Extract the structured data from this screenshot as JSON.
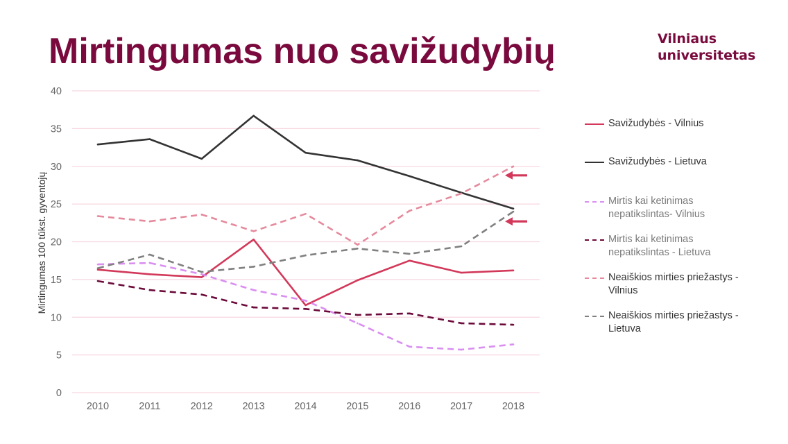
{
  "title": "Mirtingumas nuo savižudybių",
  "logo": {
    "line1": "Vilniaus",
    "line2": "universitetas"
  },
  "colors": {
    "title": "#7a0a3d",
    "grid": "#f7d6e0",
    "arrow": "#d2385a"
  },
  "chart_data": {
    "type": "line",
    "ylabel": "Mirtingumas 100 tūkst. gyventojų",
    "xlabel": "",
    "ylim": [
      0,
      40
    ],
    "yticks": [
      0,
      5,
      10,
      15,
      20,
      25,
      30,
      35,
      40
    ],
    "grid": true,
    "legend_position": "right",
    "categories": [
      "2010",
      "2011",
      "2012",
      "2013",
      "2014",
      "2015",
      "2016",
      "2017",
      "2018"
    ],
    "series": [
      {
        "name": "Savižudybės - Vilnius",
        "color": "#d2385a",
        "dash": "solid",
        "values": [
          16.3,
          15.7,
          15.3,
          20.3,
          11.6,
          14.9,
          17.5,
          15.9,
          16.2
        ]
      },
      {
        "name": "Savižudybės - Lietuva",
        "color": "#333333",
        "dash": "solid",
        "values": [
          32.9,
          33.6,
          31.0,
          36.7,
          31.8,
          30.8,
          28.7,
          26.5,
          24.4
        ]
      },
      {
        "name": "Mirtis kai ketinimas nepatikslintas- Vilnius",
        "color": "#d98ef0",
        "dash": "dashed",
        "values": [
          17.0,
          17.2,
          15.7,
          13.6,
          12.2,
          9.2,
          6.1,
          5.7,
          6.4
        ]
      },
      {
        "name": "Mirtis kai ketinimas nepatikslintas - Lietuva",
        "color": "#6b0a3a",
        "dash": "dashed",
        "values": [
          14.8,
          13.6,
          13.0,
          11.3,
          11.1,
          10.3,
          10.5,
          9.2,
          9.0
        ]
      },
      {
        "name": "Neaiškios mirties priežastys - Vilnius",
        "color": "#e58a9d",
        "dash": "dashed",
        "values": [
          23.4,
          22.7,
          23.6,
          21.4,
          23.7,
          19.6,
          24.1,
          26.4,
          30.0
        ]
      },
      {
        "name": "Neaiškios mirties priežastys - Lietuva",
        "color": "#808080",
        "dash": "dashed",
        "values": [
          16.5,
          18.3,
          16.0,
          16.7,
          18.2,
          19.1,
          18.4,
          19.4,
          24.0
        ]
      }
    ],
    "annotations": [
      {
        "type": "arrow",
        "series": "Neaiškios mirties priežastys - Vilnius",
        "category": "2018",
        "value": 28.8
      },
      {
        "type": "arrow",
        "series": "Neaiškios mirties priežastys - Lietuva",
        "category": "2018",
        "value": 22.7
      }
    ]
  },
  "legend": [
    {
      "text": "Savižudybės - Vilnius",
      "style": "dark"
    },
    {
      "text": "Savižudybės - Lietuva",
      "style": "dark"
    },
    {
      "text": "Mirtis kai ketinimas\nnepatikslintas- Vilnius",
      "style": "light"
    },
    {
      "text": "Mirtis kai ketinimas\nnepatikslintas - Lietuva",
      "style": "light"
    },
    {
      "text": "Neaiškios mirties priežastys -\nVilnius",
      "style": "dark"
    },
    {
      "text": "Neaiškios mirties priežastys -\nLietuva",
      "style": "dark"
    }
  ]
}
